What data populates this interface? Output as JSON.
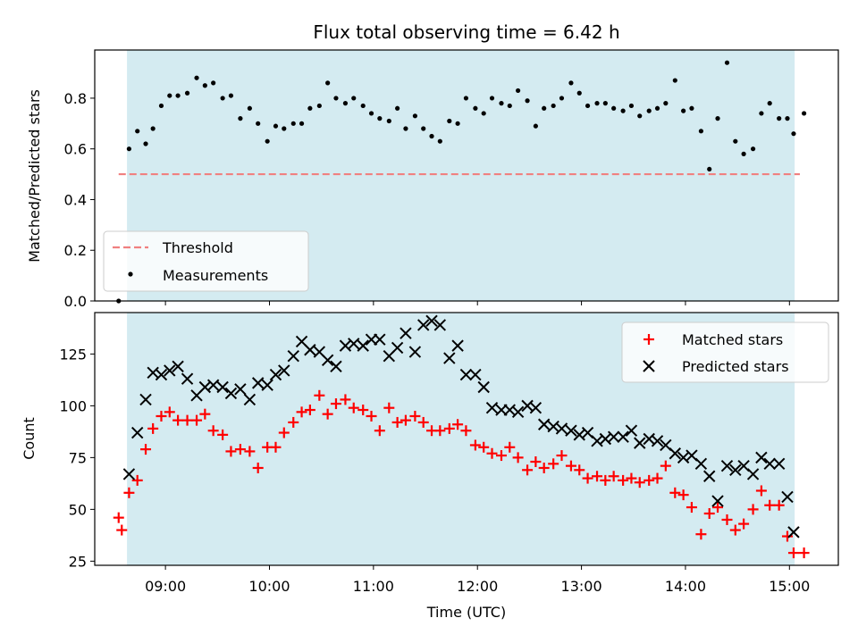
{
  "chart_data": [
    {
      "type": "scatter",
      "title": "Flux total observing time = 6.42 h",
      "ylabel": "Matched/Predicted stars",
      "ylim": [
        0,
        0.99
      ],
      "yticks": [
        "0.0",
        "0.2",
        "0.4",
        "0.6",
        "0.8"
      ],
      "ytick_values": [
        0.0,
        0.2,
        0.4,
        0.6,
        0.8
      ],
      "xlim": [
        8.32,
        15.47
      ],
      "shaded_span": [
        8.63,
        15.05
      ],
      "shaded_color": "#d4ebf1",
      "threshold": {
        "name": "Threshold",
        "value": 0.5,
        "x": [
          8.55,
          15.1
        ],
        "color": "#f08080"
      },
      "series": [
        {
          "name": "Measurements",
          "marker": "dot",
          "color": "#000000",
          "x": [
            8.55,
            8.65,
            8.73,
            8.81,
            8.88,
            8.96,
            9.04,
            9.12,
            9.21,
            9.3,
            9.38,
            9.46,
            9.55,
            9.63,
            9.72,
            9.81,
            9.89,
            9.98,
            10.06,
            10.14,
            10.23,
            10.31,
            10.39,
            10.48,
            10.56,
            10.64,
            10.73,
            10.81,
            10.9,
            10.98,
            11.06,
            11.15,
            11.23,
            11.31,
            11.4,
            11.48,
            11.56,
            11.64,
            11.73,
            11.81,
            11.89,
            11.98,
            12.06,
            12.14,
            12.23,
            12.31,
            12.39,
            12.48,
            12.56,
            12.64,
            12.73,
            12.81,
            12.9,
            12.98,
            13.06,
            13.15,
            13.23,
            13.31,
            13.4,
            13.48,
            13.56,
            13.65,
            13.73,
            13.81,
            13.9,
            13.98,
            14.06,
            14.15,
            14.23,
            14.31,
            14.4,
            14.48,
            14.56,
            14.65,
            14.73,
            14.81,
            14.9,
            14.98,
            15.04,
            15.14
          ],
          "y": [
            0.0,
            0.6,
            0.67,
            0.62,
            0.68,
            0.77,
            0.81,
            0.81,
            0.82,
            0.88,
            0.85,
            0.86,
            0.8,
            0.81,
            0.72,
            0.76,
            0.7,
            0.63,
            0.69,
            0.68,
            0.7,
            0.7,
            0.76,
            0.77,
            0.86,
            0.8,
            0.78,
            0.8,
            0.77,
            0.74,
            0.72,
            0.71,
            0.76,
            0.68,
            0.73,
            0.68,
            0.65,
            0.63,
            0.71,
            0.7,
            0.8,
            0.76,
            0.74,
            0.8,
            0.78,
            0.77,
            0.83,
            0.79,
            0.69,
            0.76,
            0.77,
            0.8,
            0.86,
            0.82,
            0.77,
            0.78,
            0.78,
            0.76,
            0.75,
            0.77,
            0.73,
            0.75,
            0.76,
            0.78,
            0.87,
            0.75,
            0.76,
            0.67,
            0.52,
            0.72,
            0.94,
            0.63,
            0.58,
            0.6,
            0.74,
            0.78,
            0.72,
            0.72,
            0.66,
            0.74
          ]
        }
      ],
      "legend": {
        "position": "lower-left",
        "entries": [
          "Threshold",
          "Measurements"
        ]
      }
    },
    {
      "type": "scatter",
      "xlabel": "Time (UTC)",
      "ylabel": "Count",
      "ylim": [
        23,
        145
      ],
      "xlim": [
        8.32,
        15.47
      ],
      "yticks": [
        "25",
        "50",
        "75",
        "100",
        "125"
      ],
      "ytick_values": [
        25,
        50,
        75,
        100,
        125
      ],
      "xticks": [
        "09:00",
        "10:00",
        "11:00",
        "12:00",
        "13:00",
        "14:00",
        "15:00"
      ],
      "xtick_values": [
        9,
        10,
        11,
        12,
        13,
        14,
        15
      ],
      "shaded_span": [
        8.63,
        15.05
      ],
      "series": [
        {
          "name": "Matched stars",
          "marker": "plus",
          "color": "#ff0000",
          "x": [
            8.55,
            8.58,
            8.65,
            8.73,
            8.81,
            8.88,
            8.96,
            9.04,
            9.12,
            9.21,
            9.3,
            9.38,
            9.46,
            9.55,
            9.63,
            9.72,
            9.81,
            9.89,
            9.98,
            10.06,
            10.14,
            10.23,
            10.31,
            10.39,
            10.48,
            10.56,
            10.64,
            10.73,
            10.81,
            10.9,
            10.98,
            11.06,
            11.15,
            11.23,
            11.31,
            11.4,
            11.48,
            11.56,
            11.64,
            11.73,
            11.81,
            11.89,
            11.98,
            12.06,
            12.14,
            12.23,
            12.31,
            12.39,
            12.48,
            12.56,
            12.64,
            12.73,
            12.81,
            12.9,
            12.98,
            13.06,
            13.15,
            13.23,
            13.31,
            13.4,
            13.48,
            13.56,
            13.65,
            13.73,
            13.81,
            13.9,
            13.98,
            14.06,
            14.15,
            14.23,
            14.31,
            14.4,
            14.48,
            14.56,
            14.65,
            14.73,
            14.81,
            14.9,
            14.98,
            15.04,
            15.14
          ],
          "y": [
            46,
            40,
            58,
            64,
            79,
            89,
            95,
            97,
            93,
            93,
            93,
            96,
            88,
            86,
            78,
            79,
            78,
            70,
            80,
            80,
            87,
            92,
            97,
            98,
            105,
            96,
            101,
            103,
            99,
            98,
            95,
            88,
            99,
            92,
            93,
            95,
            92,
            88,
            88,
            89,
            91,
            88,
            81,
            80,
            77,
            76,
            80,
            75,
            69,
            73,
            70,
            72,
            76,
            71,
            69,
            65,
            66,
            64,
            66,
            64,
            65,
            63,
            64,
            65,
            71,
            58,
            57,
            51,
            38,
            48,
            51,
            45,
            40,
            43,
            50,
            59,
            52,
            52,
            37,
            29,
            29
          ]
        },
        {
          "name": "Predicted stars",
          "marker": "x",
          "color": "#000000",
          "x": [
            8.65,
            8.73,
            8.81,
            8.88,
            8.96,
            9.04,
            9.12,
            9.21,
            9.3,
            9.38,
            9.46,
            9.55,
            9.63,
            9.72,
            9.81,
            9.89,
            9.98,
            10.06,
            10.14,
            10.23,
            10.31,
            10.39,
            10.48,
            10.56,
            10.64,
            10.73,
            10.81,
            10.9,
            10.98,
            11.06,
            11.15,
            11.23,
            11.31,
            11.4,
            11.48,
            11.56,
            11.64,
            11.73,
            11.81,
            11.89,
            11.98,
            12.06,
            12.14,
            12.23,
            12.31,
            12.39,
            12.48,
            12.56,
            12.64,
            12.73,
            12.81,
            12.9,
            12.98,
            13.06,
            13.15,
            13.23,
            13.31,
            13.4,
            13.48,
            13.56,
            13.65,
            13.73,
            13.81,
            13.9,
            13.98,
            14.06,
            14.15,
            14.23,
            14.31,
            14.4,
            14.48,
            14.56,
            14.65,
            14.73,
            14.81,
            14.9,
            14.98,
            15.04
          ],
          "y": [
            67,
            87,
            103,
            116,
            115,
            117,
            119,
            113,
            105,
            109,
            110,
            109,
            106,
            108,
            103,
            111,
            110,
            115,
            117,
            124,
            131,
            127,
            126,
            122,
            119,
            129,
            130,
            129,
            132,
            132,
            124,
            128,
            135,
            126,
            139,
            141,
            139,
            123,
            129,
            115,
            115,
            109,
            99,
            98,
            98,
            97,
            100,
            99,
            91,
            90,
            89,
            88,
            86,
            87,
            83,
            84,
            85,
            85,
            88,
            82,
            84,
            83,
            81,
            77,
            75,
            76,
            72,
            66,
            54,
            71,
            69,
            71,
            67,
            75,
            72,
            72,
            56,
            39
          ]
        }
      ],
      "legend": {
        "position": "upper-right",
        "entries": [
          "Matched stars",
          "Predicted stars"
        ]
      }
    }
  ]
}
